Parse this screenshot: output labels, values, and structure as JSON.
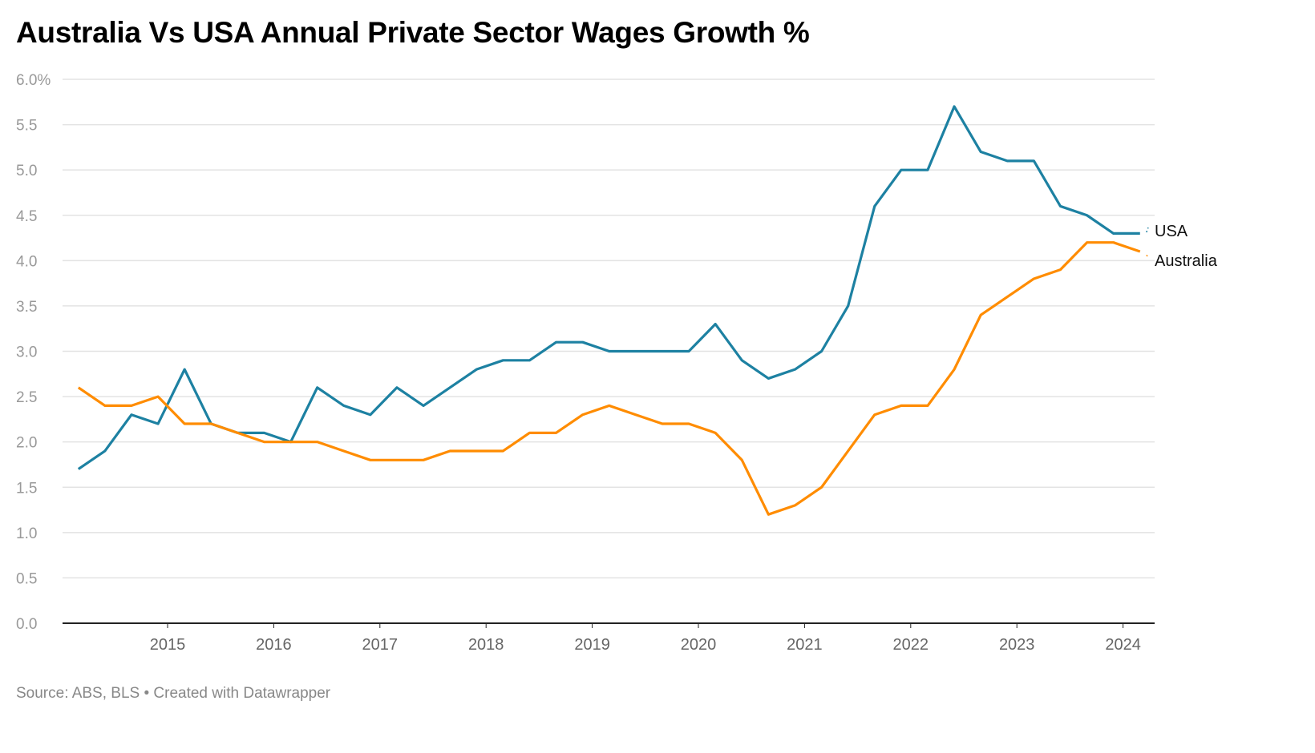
{
  "chart_data": {
    "type": "line",
    "title": "Australia Vs USA Annual Private Sector Wages Growth %",
    "source": "Source: ABS, BLS • Created with Datawrapper",
    "xlabel": "",
    "ylabel": "",
    "ylim": [
      0,
      6
    ],
    "xlim": [
      2014.0,
      2024.33
    ],
    "y_ticks": [
      "0.0",
      "0.5",
      "1.0",
      "1.5",
      "2.0",
      "2.5",
      "3.0",
      "3.5",
      "4.0",
      "4.5",
      "5.0",
      "5.5",
      "6.0%"
    ],
    "x_ticks": [
      "2015",
      "2016",
      "2017",
      "2018",
      "2019",
      "2020",
      "2021",
      "2022",
      "2023",
      "2024"
    ],
    "grid": true,
    "legend": "direct labels at right end of lines",
    "x_start": 2014.16,
    "x_step": 0.25,
    "series": [
      {
        "name": "USA",
        "color": "#1d81a2",
        "values": [
          1.7,
          1.9,
          2.3,
          2.2,
          2.8,
          2.2,
          2.1,
          2.1,
          2.0,
          2.6,
          2.4,
          2.3,
          2.6,
          2.4,
          2.6,
          2.8,
          2.9,
          2.9,
          3.1,
          3.1,
          3.0,
          3.0,
          3.0,
          3.0,
          3.3,
          2.9,
          2.7,
          2.8,
          3.0,
          3.5,
          4.6,
          5.0,
          5.0,
          5.7,
          5.2,
          5.1,
          5.1,
          4.6,
          4.5,
          4.3,
          4.3
        ]
      },
      {
        "name": "Australia",
        "color": "#ff8c00",
        "values": [
          2.6,
          2.4,
          2.4,
          2.5,
          2.2,
          2.2,
          2.1,
          2.0,
          2.0,
          2.0,
          1.9,
          1.8,
          1.8,
          1.8,
          1.9,
          1.9,
          1.9,
          2.1,
          2.1,
          2.3,
          2.4,
          2.3,
          2.2,
          2.2,
          2.1,
          1.8,
          1.2,
          1.3,
          1.5,
          1.9,
          2.3,
          2.4,
          2.4,
          2.8,
          3.4,
          3.6,
          3.8,
          3.9,
          4.2,
          4.2,
          4.1
        ]
      }
    ]
  }
}
